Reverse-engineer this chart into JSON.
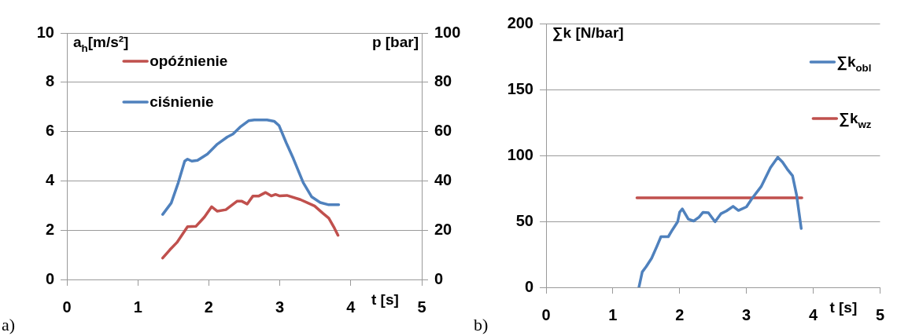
{
  "chart_data": [
    {
      "type": "line",
      "xlabel": "t [s]",
      "ylabel": "a$_{h}$[m/s²]",
      "y2label": "p [bar]",
      "xlim": [
        0,
        5
      ],
      "xticks": [
        0,
        1,
        2,
        3,
        4,
        5
      ],
      "ylim": [
        0,
        10
      ],
      "yticks": [
        0,
        2,
        4,
        6,
        8,
        10
      ],
      "y2lim": [
        0,
        100
      ],
      "y2ticks": [
        0,
        20,
        40,
        60,
        80,
        100
      ],
      "grid": "y",
      "legend": "top left",
      "marker": "none",
      "annotations": [
        "a)"
      ],
      "series": [
        {
          "name": "opóźnienie",
          "color": "#c0504d",
          "x": [
            1.35,
            1.45,
            1.55,
            1.7,
            1.82,
            1.94,
            2.04,
            2.12,
            2.24,
            2.4,
            2.46,
            2.54,
            2.62,
            2.7,
            2.8,
            2.88,
            2.94,
            3.0,
            3.1,
            3.29,
            3.49,
            3.61,
            3.69,
            3.77,
            3.82
          ],
          "values": [
            0.87,
            1.2,
            1.5,
            2.14,
            2.16,
            2.54,
            2.95,
            2.77,
            2.83,
            3.18,
            3.18,
            3.06,
            3.38,
            3.38,
            3.53,
            3.39,
            3.45,
            3.39,
            3.41,
            3.24,
            2.98,
            2.68,
            2.49,
            2.08,
            1.79
          ]
        },
        {
          "name": "ciśnienie",
          "color": "#4f81bd",
          "axis": "y2",
          "x": [
            1.35,
            1.47,
            1.57,
            1.66,
            1.7,
            1.76,
            1.84,
            1.98,
            2.12,
            2.26,
            2.34,
            2.44,
            2.56,
            2.64,
            2.82,
            2.92,
            2.99,
            3.09,
            3.19,
            3.33,
            3.45,
            3.57,
            3.69,
            3.83
          ],
          "values": [
            26.4,
            31,
            39.3,
            48,
            48.8,
            48,
            48.3,
            50.9,
            54.9,
            57.8,
            59,
            61.8,
            64.4,
            64.7,
            64.7,
            64.2,
            62.4,
            55.5,
            49.1,
            39.3,
            33.5,
            31.2,
            30.3,
            30.3
          ]
        }
      ]
    },
    {
      "type": "line",
      "xlabel": "t [s]",
      "ylabel": "∑k [N/bar]",
      "xlim": [
        0,
        5
      ],
      "xticks": [
        0,
        1,
        2,
        3,
        4,
        5
      ],
      "ylim": [
        0,
        200
      ],
      "yticks": [
        0,
        50,
        100,
        150,
        200
      ],
      "grid": "y",
      "legend": "top right",
      "marker": "none",
      "annotations": [
        "b)"
      ],
      "series": [
        {
          "name": "∑k$_{obl}$",
          "color": "#4f81bd",
          "x": [
            1.39,
            1.44,
            1.5,
            1.58,
            1.66,
            1.72,
            1.83,
            1.89,
            1.97,
            2.0,
            2.04,
            2.13,
            2.21,
            2.29,
            2.35,
            2.43,
            2.53,
            2.62,
            2.7,
            2.8,
            2.88,
            3.0,
            3.08,
            3.22,
            3.36,
            3.47,
            3.54,
            3.61,
            3.69,
            3.75,
            3.82
          ],
          "values": [
            0,
            11.7,
            15.8,
            22,
            31.2,
            38.4,
            38.4,
            43.5,
            49.7,
            56.9,
            59.5,
            51.7,
            50.3,
            53.2,
            56.9,
            56.5,
            49.7,
            55.9,
            57.9,
            61.4,
            58.3,
            61,
            67.1,
            76.4,
            90.8,
            98.6,
            94.9,
            89.7,
            84.6,
            70.2,
            44.6
          ]
        },
        {
          "name": "∑k$_{wz}$",
          "color": "#c0504d",
          "x": [
            1.36,
            3.83
          ],
          "values": [
            67.8,
            67.8
          ]
        }
      ]
    }
  ]
}
